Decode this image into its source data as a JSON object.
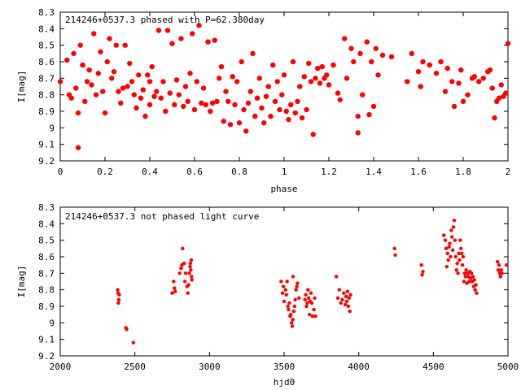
{
  "chart_data": [
    {
      "type": "scatter",
      "title": "214246+0537.3 phased with P=62.380day",
      "xlabel": "phase",
      "ylabel": "I[mag]",
      "xlim": [
        0,
        2
      ],
      "ylim": [
        9.2,
        8.3
      ],
      "y_inverted": true,
      "grid": false,
      "color": "#ff0000",
      "x_ticks": [
        0,
        0.2,
        0.4,
        0.6,
        0.8,
        1,
        1.2,
        1.4,
        1.6,
        1.8,
        2
      ],
      "x_tick_labels": [
        "0",
        "0.2",
        "0.4",
        "0.6",
        "0.8",
        "1",
        "1.2",
        "1.4",
        "1.6",
        "1.8",
        "2"
      ],
      "y_ticks": [
        8.3,
        8.4,
        8.5,
        8.6,
        8.7,
        8.8,
        8.9,
        9,
        9.1,
        9.2
      ],
      "y_tick_labels": [
        "8.3",
        "8.4",
        "8.5",
        "8.6",
        "8.7",
        "8.8",
        "8.9",
        "9",
        "9.1",
        "9.2"
      ],
      "points": [
        [
          0.0,
          8.72
        ],
        [
          0.03,
          8.59
        ],
        [
          0.04,
          8.8
        ],
        [
          0.05,
          8.82
        ],
        [
          0.06,
          8.55
        ],
        [
          0.07,
          8.76
        ],
        [
          0.08,
          8.91
        ],
        [
          0.08,
          9.12
        ],
        [
          0.09,
          8.5
        ],
        [
          0.1,
          8.62
        ],
        [
          0.11,
          8.84
        ],
        [
          0.12,
          8.72
        ],
        [
          0.13,
          8.65
        ],
        [
          0.14,
          8.74
        ],
        [
          0.15,
          8.43
        ],
        [
          0.16,
          8.8
        ],
        [
          0.17,
          8.67
        ],
        [
          0.18,
          8.54
        ],
        [
          0.19,
          8.78
        ],
        [
          0.2,
          8.91
        ],
        [
          0.21,
          8.6
        ],
        [
          0.22,
          8.46
        ],
        [
          0.23,
          8.7
        ],
        [
          0.24,
          8.66
        ],
        [
          0.25,
          8.5
        ],
        [
          0.26,
          8.78
        ],
        [
          0.27,
          8.85
        ],
        [
          0.28,
          8.76
        ],
        [
          0.29,
          8.5
        ],
        [
          0.3,
          8.75
        ],
        [
          0.31,
          8.61
        ],
        [
          0.32,
          8.72
        ],
        [
          0.33,
          8.8
        ],
        [
          0.34,
          8.88
        ],
        [
          0.35,
          8.68
        ],
        [
          0.36,
          8.82
        ],
        [
          0.37,
          8.77
        ],
        [
          0.38,
          8.93
        ],
        [
          0.39,
          8.68
        ],
        [
          0.4,
          8.72
        ],
        [
          0.4,
          8.86
        ],
        [
          0.41,
          8.63
        ],
        [
          0.42,
          8.81
        ],
        [
          0.43,
          8.78
        ],
        [
          0.44,
          8.41
        ],
        [
          0.45,
          8.82
        ],
        [
          0.46,
          8.72
        ],
        [
          0.47,
          8.9
        ],
        [
          0.48,
          8.41
        ],
        [
          0.49,
          8.79
        ],
        [
          0.5,
          8.49
        ],
        [
          0.51,
          8.86
        ],
        [
          0.52,
          8.71
        ],
        [
          0.53,
          8.8
        ],
        [
          0.54,
          8.46
        ],
        [
          0.55,
          8.87
        ],
        [
          0.56,
          8.75
        ],
        [
          0.57,
          8.84
        ],
        [
          0.58,
          8.67
        ],
        [
          0.59,
          8.43
        ],
        [
          0.6,
          8.89
        ],
        [
          0.61,
          8.72
        ],
        [
          0.62,
          8.38
        ],
        [
          0.63,
          8.85
        ],
        [
          0.64,
          8.76
        ],
        [
          0.65,
          8.86
        ],
        [
          0.66,
          8.48
        ],
        [
          0.67,
          8.9
        ],
        [
          0.68,
          8.85
        ],
        [
          0.69,
          8.47
        ],
        [
          0.7,
          8.84
        ],
        [
          0.71,
          8.7
        ],
        [
          0.72,
          8.63
        ],
        [
          0.73,
          8.96
        ],
        [
          0.74,
          8.78
        ],
        [
          0.75,
          8.84
        ],
        [
          0.76,
          8.98
        ],
        [
          0.77,
          8.69
        ],
        [
          0.78,
          8.86
        ],
        [
          0.79,
          8.72
        ],
        [
          0.8,
          8.97
        ],
        [
          0.81,
          8.6
        ],
        [
          0.82,
          8.89
        ],
        [
          0.83,
          9.02
        ],
        [
          0.84,
          8.85
        ],
        [
          0.85,
          8.78
        ],
        [
          0.86,
          8.55
        ],
        [
          0.87,
          8.93
        ],
        [
          0.88,
          8.82
        ],
        [
          0.89,
          8.7
        ],
        [
          0.9,
          8.88
        ],
        [
          0.91,
          8.97
        ],
        [
          0.92,
          8.81
        ],
        [
          0.93,
          8.75
        ],
        [
          0.94,
          8.93
        ],
        [
          0.95,
          8.62
        ],
        [
          0.96,
          8.84
        ],
        [
          0.97,
          8.72
        ],
        [
          0.98,
          8.89
        ],
        [
          0.99,
          8.8
        ],
        [
          1.0,
          8.68
        ],
        [
          1.01,
          8.9
        ],
        [
          1.02,
          8.95
        ],
        [
          1.03,
          8.86
        ],
        [
          1.04,
          8.6
        ],
        [
          1.05,
          8.91
        ],
        [
          1.06,
          8.84
        ],
        [
          1.07,
          8.75
        ],
        [
          1.08,
          8.94
        ],
        [
          1.09,
          8.69
        ],
        [
          1.1,
          8.89
        ],
        [
          1.11,
          8.61
        ],
        [
          1.12,
          8.72
        ],
        [
          1.13,
          9.04
        ],
        [
          1.14,
          8.7
        ],
        [
          1.15,
          8.64
        ],
        [
          1.16,
          8.73
        ],
        [
          1.17,
          8.63
        ],
        [
          1.18,
          8.7
        ],
        [
          1.19,
          8.68
        ],
        [
          1.2,
          8.74
        ],
        [
          1.22,
          8.62
        ],
        [
          1.24,
          8.79
        ],
        [
          1.25,
          8.83
        ],
        [
          1.27,
          8.46
        ],
        [
          1.28,
          8.7
        ],
        [
          1.3,
          8.52
        ],
        [
          1.31,
          8.6
        ],
        [
          1.33,
          8.93
        ],
        [
          1.33,
          9.03
        ],
        [
          1.34,
          8.55
        ],
        [
          1.35,
          8.8
        ],
        [
          1.37,
          8.48
        ],
        [
          1.38,
          8.92
        ],
        [
          1.39,
          8.6
        ],
        [
          1.4,
          8.87
        ],
        [
          1.41,
          8.52
        ],
        [
          1.42,
          8.68
        ],
        [
          1.44,
          8.56
        ],
        [
          1.48,
          8.57
        ],
        [
          1.55,
          8.72
        ],
        [
          1.57,
          8.55
        ],
        [
          1.6,
          8.66
        ],
        [
          1.61,
          8.75
        ],
        [
          1.62,
          8.6
        ],
        [
          1.65,
          8.62
        ],
        [
          1.68,
          8.67
        ],
        [
          1.7,
          8.6
        ],
        [
          1.72,
          8.78
        ],
        [
          1.73,
          8.64
        ],
        [
          1.75,
          8.72
        ],
        [
          1.76,
          8.87
        ],
        [
          1.78,
          8.73
        ],
        [
          1.79,
          8.65
        ],
        [
          1.8,
          8.84
        ],
        [
          1.82,
          8.8
        ],
        [
          1.84,
          8.7
        ],
        [
          1.85,
          8.69
        ],
        [
          1.87,
          8.72
        ],
        [
          1.89,
          8.7
        ],
        [
          1.91,
          8.66
        ],
        [
          1.92,
          8.65
        ],
        [
          1.93,
          8.76
        ],
        [
          1.94,
          8.94
        ],
        [
          1.95,
          8.84
        ],
        [
          1.96,
          8.82
        ],
        [
          1.97,
          8.74
        ],
        [
          1.98,
          8.81
        ],
        [
          1.99,
          8.79
        ],
        [
          2.0,
          8.49
        ]
      ]
    },
    {
      "type": "scatter",
      "title": "214246+0537.3 not phased light curve",
      "xlabel": "hjd0",
      "ylabel": "I[mag]",
      "xlim": [
        2000,
        5000
      ],
      "ylim": [
        9.2,
        8.3
      ],
      "y_inverted": true,
      "grid": false,
      "color": "#ff0000",
      "x_ticks": [
        2000,
        2500,
        3000,
        3500,
        4000,
        4500,
        5000
      ],
      "x_tick_labels": [
        "2000",
        "2500",
        "3000",
        "3500",
        "4000",
        "4500",
        "5000"
      ],
      "y_ticks": [
        8.3,
        8.4,
        8.5,
        8.6,
        8.7,
        8.8,
        8.9,
        9,
        9.1,
        9.2
      ],
      "y_tick_labels": [
        "8.3",
        "8.4",
        "8.5",
        "8.6",
        "8.7",
        "8.8",
        "8.9",
        "9",
        "9.1",
        "9.2"
      ],
      "points": [
        [
          2385,
          8.8
        ],
        [
          2388,
          8.82
        ],
        [
          2390,
          8.88
        ],
        [
          2392,
          8.86
        ],
        [
          2395,
          8.83
        ],
        [
          2440,
          9.03
        ],
        [
          2445,
          9.04
        ],
        [
          2490,
          9.12
        ],
        [
          2750,
          8.82
        ],
        [
          2760,
          8.75
        ],
        [
          2765,
          8.79
        ],
        [
          2770,
          8.81
        ],
        [
          2800,
          8.7
        ],
        [
          2810,
          8.67
        ],
        [
          2815,
          8.65
        ],
        [
          2820,
          8.55
        ],
        [
          2830,
          8.64
        ],
        [
          2835,
          8.75
        ],
        [
          2840,
          8.7
        ],
        [
          2850,
          8.78
        ],
        [
          2855,
          8.82
        ],
        [
          2860,
          8.77
        ],
        [
          2865,
          8.7
        ],
        [
          2870,
          8.66
        ],
        [
          2872,
          8.64
        ],
        [
          2875,
          8.68
        ],
        [
          2878,
          8.62
        ],
        [
          2880,
          8.72
        ],
        [
          2882,
          8.74
        ],
        [
          3480,
          8.75
        ],
        [
          3490,
          8.82
        ],
        [
          3495,
          8.78
        ],
        [
          3500,
          8.87
        ],
        [
          3510,
          8.8
        ],
        [
          3515,
          8.83
        ],
        [
          3520,
          8.75
        ],
        [
          3525,
          8.9
        ],
        [
          3530,
          8.92
        ],
        [
          3535,
          8.88
        ],
        [
          3540,
          8.96
        ],
        [
          3545,
          8.95
        ],
        [
          3550,
          9.0
        ],
        [
          3555,
          9.02
        ],
        [
          3558,
          8.98
        ],
        [
          3560,
          8.72
        ],
        [
          3565,
          8.93
        ],
        [
          3570,
          8.9
        ],
        [
          3575,
          8.86
        ],
        [
          3580,
          8.8
        ],
        [
          3585,
          8.78
        ],
        [
          3590,
          8.76
        ],
        [
          3600,
          8.85
        ],
        [
          3640,
          8.86
        ],
        [
          3645,
          8.83
        ],
        [
          3650,
          8.9
        ],
        [
          3655,
          8.88
        ],
        [
          3660,
          8.8
        ],
        [
          3665,
          8.85
        ],
        [
          3670,
          8.95
        ],
        [
          3675,
          8.87
        ],
        [
          3680,
          8.82
        ],
        [
          3685,
          8.88
        ],
        [
          3690,
          8.96
        ],
        [
          3700,
          8.92
        ],
        [
          3705,
          8.85
        ],
        [
          3710,
          8.96
        ],
        [
          3850,
          8.72
        ],
        [
          3860,
          8.85
        ],
        [
          3870,
          8.8
        ],
        [
          3880,
          8.88
        ],
        [
          3890,
          8.86
        ],
        [
          3900,
          8.82
        ],
        [
          3910,
          8.89
        ],
        [
          3915,
          8.84
        ],
        [
          3920,
          8.87
        ],
        [
          3925,
          8.81
        ],
        [
          3930,
          8.9
        ],
        [
          3935,
          8.85
        ],
        [
          3940,
          8.93
        ],
        [
          3945,
          8.83
        ],
        [
          4240,
          8.55
        ],
        [
          4245,
          8.59
        ],
        [
          4420,
          8.65
        ],
        [
          4425,
          8.71
        ],
        [
          4430,
          8.69
        ],
        [
          4570,
          8.47
        ],
        [
          4580,
          8.5
        ],
        [
          4585,
          8.55
        ],
        [
          4590,
          8.66
        ],
        [
          4595,
          8.58
        ],
        [
          4600,
          8.62
        ],
        [
          4605,
          8.54
        ],
        [
          4610,
          8.52
        ],
        [
          4615,
          8.6
        ],
        [
          4620,
          8.44
        ],
        [
          4625,
          8.48
        ],
        [
          4630,
          8.56
        ],
        [
          4635,
          8.42
        ],
        [
          4640,
          8.38
        ],
        [
          4645,
          8.5
        ],
        [
          4650,
          8.6
        ],
        [
          4655,
          8.68
        ],
        [
          4660,
          8.64
        ],
        [
          4665,
          8.7
        ],
        [
          4670,
          8.58
        ],
        [
          4675,
          8.62
        ],
        [
          4680,
          8.5
        ],
        [
          4685,
          8.55
        ],
        [
          4690,
          8.58
        ],
        [
          4695,
          8.65
        ],
        [
          4700,
          8.6
        ],
        [
          4705,
          8.75
        ],
        [
          4710,
          8.7
        ],
        [
          4715,
          8.72
        ],
        [
          4720,
          8.68
        ],
        [
          4725,
          8.76
        ],
        [
          4730,
          8.7
        ],
        [
          4735,
          8.72
        ],
        [
          4740,
          8.75
        ],
        [
          4745,
          8.69
        ],
        [
          4750,
          8.73
        ],
        [
          4755,
          8.7
        ],
        [
          4760,
          8.75
        ],
        [
          4765,
          8.72
        ],
        [
          4770,
          8.78
        ],
        [
          4775,
          8.74
        ],
        [
          4780,
          8.8
        ],
        [
          4785,
          8.77
        ],
        [
          4790,
          8.82
        ],
        [
          4930,
          8.63
        ],
        [
          4935,
          8.68
        ],
        [
          4940,
          8.65
        ],
        [
          4945,
          8.7
        ],
        [
          4950,
          8.72
        ],
        [
          4955,
          8.68
        ],
        [
          4960,
          8.7
        ],
        [
          4990,
          8.65
        ]
      ]
    }
  ]
}
